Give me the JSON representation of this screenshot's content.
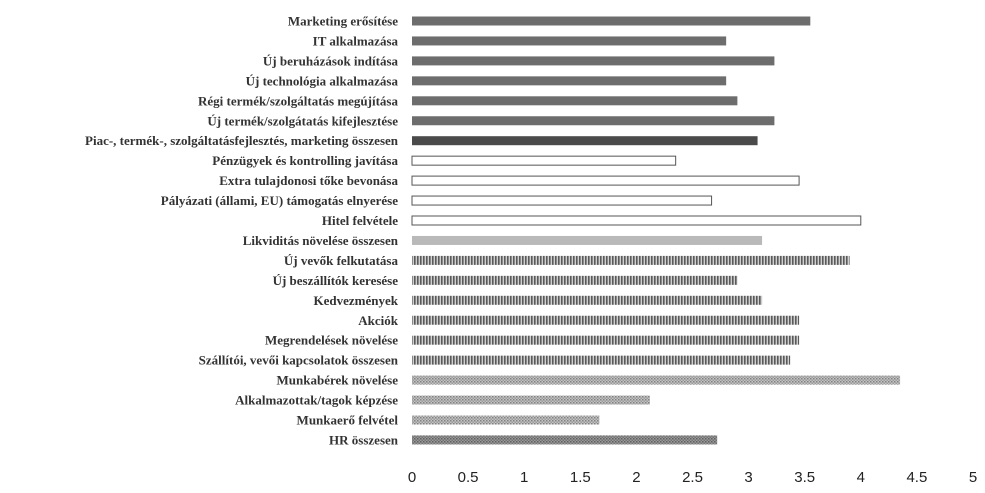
{
  "chart_data": {
    "type": "bar",
    "orientation": "horizontal",
    "title": "",
    "xlabel": "",
    "ylabel": "",
    "xlim": [
      0,
      5
    ],
    "xticks": [
      "0",
      "0.5",
      "1",
      "1.5",
      "2",
      "2.5",
      "3",
      "3.5",
      "4",
      "4.5",
      "5"
    ],
    "grid": false,
    "legend": "none",
    "categories": [
      "Marketing erősítése",
      "IT alkalmazása",
      "Új beruházások indítása",
      "Új technológia alkalmazása",
      "Régi termék/szolgáltatás megújítása",
      "Új termék/szolgátatás kifejlesztése",
      "Piac-, termék-, szolgáltatásfejlesztés, marketing összesen",
      "Pénzügyek és kontrolling javítása",
      "Extra tulajdonosi tőke bevonása",
      "Pályázati (állami, EU) támogatás elnyerése",
      "Hitel felvétele",
      "Likviditás növelése összesen",
      "Új vevők felkutatása",
      "Új beszállítók keresése",
      "Kedvezmények",
      "Akciók",
      "Megrendelések növelése",
      "Szállítói, vevői kapcsolatok összesen",
      "Munkabérek növelése",
      "Alkalmazottak/tagok képzése",
      "Munkaerő felvétel",
      "HR összesen"
    ],
    "values": [
      3.55,
      2.8,
      3.23,
      2.8,
      2.9,
      3.23,
      3.08,
      2.35,
      3.45,
      2.67,
      4.0,
      3.12,
      3.9,
      2.9,
      3.12,
      3.45,
      3.45,
      3.37,
      4.35,
      2.12,
      1.67,
      2.72
    ],
    "groups": [
      "marketing",
      "marketing",
      "marketing",
      "marketing",
      "marketing",
      "marketing",
      "marketing-total",
      "finance",
      "finance",
      "finance",
      "finance",
      "finance-total",
      "supplier",
      "supplier",
      "supplier",
      "supplier",
      "supplier",
      "supplier",
      "hr",
      "hr",
      "hr",
      "hr-total"
    ],
    "group_styles": {
      "marketing": {
        "fill": "#6d6d6d",
        "pattern": "solid"
      },
      "marketing-total": {
        "fill": "#4a4a4a",
        "pattern": "solid"
      },
      "finance": {
        "fill": "#ffffff",
        "pattern": "outline"
      },
      "finance-total": {
        "fill": "#b9b9b9",
        "pattern": "solid"
      },
      "supplier": {
        "fill": "#8a8a8a",
        "pattern": "vertical-stripes"
      },
      "hr": {
        "fill": "#a8a8a8",
        "pattern": "dotted"
      },
      "hr-total": {
        "fill": "#7f7f7f",
        "pattern": "dotted"
      }
    },
    "colors": {
      "outline": "#555555",
      "text": "#333333"
    }
  }
}
